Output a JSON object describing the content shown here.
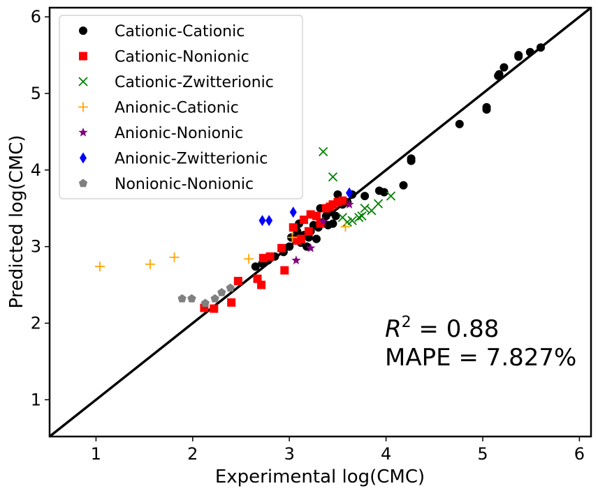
{
  "chart_data": {
    "type": "scatter",
    "title": "",
    "xlabel": "Experimental log(CMC)",
    "ylabel": "Predicted log(CMC)",
    "xlim": [
      0.52,
      6.12
    ],
    "ylim": [
      0.52,
      6.12
    ],
    "xticks": [
      1,
      2,
      3,
      4,
      5,
      6
    ],
    "yticks": [
      1,
      2,
      3,
      4,
      5,
      6
    ],
    "grid": false,
    "legend_position": "top-left",
    "reference_line": {
      "from": [
        0.52,
        0.52
      ],
      "to": [
        6.12,
        6.12
      ],
      "color": "#000000"
    },
    "annotations": {
      "r2_symbol": "R",
      "r2_superscript": "2",
      "r2_text": " = 0.88",
      "mape_text": "MAPE = 7.827%"
    },
    "series": [
      {
        "name": "Cationic-Cationic",
        "marker": "circle",
        "color": "#000000",
        "points": [
          [
            2.65,
            2.74
          ],
          [
            2.72,
            2.78
          ],
          [
            2.78,
            2.82
          ],
          [
            2.85,
            2.87
          ],
          [
            2.94,
            2.93
          ],
          [
            3.0,
            3.0
          ],
          [
            3.02,
            3.12
          ],
          [
            3.05,
            3.1
          ],
          [
            3.08,
            3.2
          ],
          [
            3.1,
            3.3
          ],
          [
            3.12,
            3.05
          ],
          [
            3.15,
            3.15
          ],
          [
            3.18,
            3.0
          ],
          [
            3.2,
            3.12
          ],
          [
            3.22,
            3.2
          ],
          [
            3.25,
            3.28
          ],
          [
            3.28,
            3.1
          ],
          [
            3.3,
            3.25
          ],
          [
            3.32,
            3.5
          ],
          [
            3.35,
            3.32
          ],
          [
            3.38,
            3.4
          ],
          [
            3.4,
            3.28
          ],
          [
            3.42,
            3.45
          ],
          [
            3.45,
            3.3
          ],
          [
            3.48,
            3.4
          ],
          [
            3.5,
            3.68
          ],
          [
            3.55,
            3.55
          ],
          [
            3.6,
            3.58
          ],
          [
            3.65,
            3.68
          ],
          [
            3.78,
            3.66
          ],
          [
            3.93,
            3.73
          ],
          [
            3.98,
            3.71
          ],
          [
            4.18,
            3.8
          ],
          [
            4.26,
            4.12
          ],
          [
            4.26,
            4.15
          ],
          [
            4.76,
            4.6
          ],
          [
            5.04,
            4.79
          ],
          [
            5.04,
            4.82
          ],
          [
            5.16,
            5.23
          ],
          [
            5.17,
            5.25
          ],
          [
            5.22,
            5.34
          ],
          [
            5.37,
            5.48
          ],
          [
            5.37,
            5.5
          ],
          [
            5.49,
            5.54
          ],
          [
            5.6,
            5.6
          ]
        ]
      },
      {
        "name": "Cationic-Nonionic",
        "marker": "square",
        "color": "#ff0000",
        "points": [
          [
            2.12,
            2.2
          ],
          [
            2.22,
            2.19
          ],
          [
            2.4,
            2.27
          ],
          [
            2.47,
            2.55
          ],
          [
            2.67,
            2.58
          ],
          [
            2.71,
            2.5
          ],
          [
            2.73,
            2.85
          ],
          [
            2.8,
            2.87
          ],
          [
            2.92,
            2.98
          ],
          [
            2.95,
            2.69
          ],
          [
            3.04,
            3.25
          ],
          [
            3.08,
            3.08
          ],
          [
            3.12,
            3.1
          ],
          [
            3.15,
            3.35
          ],
          [
            3.2,
            3.2
          ],
          [
            3.22,
            3.42
          ],
          [
            3.28,
            3.4
          ],
          [
            3.32,
            3.3
          ],
          [
            3.38,
            3.5
          ],
          [
            3.42,
            3.52
          ],
          [
            3.45,
            3.55
          ],
          [
            3.5,
            3.58
          ],
          [
            3.55,
            3.6
          ]
        ]
      },
      {
        "name": "Cationic-Zwitterionic",
        "marker": "x",
        "color": "#008000",
        "points": [
          [
            3.35,
            4.24
          ],
          [
            3.45,
            3.91
          ],
          [
            3.55,
            3.38
          ],
          [
            3.6,
            3.32
          ],
          [
            3.65,
            3.34
          ],
          [
            3.72,
            3.38
          ],
          [
            3.75,
            3.4
          ],
          [
            3.78,
            3.5
          ],
          [
            3.85,
            3.47
          ],
          [
            3.92,
            3.56
          ],
          [
            4.05,
            3.66
          ]
        ]
      },
      {
        "name": "Anionic-Cationic",
        "marker": "plus",
        "color": "#ffa500",
        "points": [
          [
            1.04,
            2.74
          ],
          [
            1.56,
            2.77
          ],
          [
            1.81,
            2.86
          ],
          [
            2.58,
            2.84
          ],
          [
            3.03,
            3.12
          ],
          [
            3.58,
            3.26
          ]
        ]
      },
      {
        "name": "Anionic-Nonionic",
        "marker": "star",
        "color": "#800080",
        "points": [
          [
            3.07,
            2.82
          ],
          [
            3.22,
            2.98
          ],
          [
            3.35,
            3.33
          ],
          [
            3.62,
            3.55
          ]
        ]
      },
      {
        "name": "Anionic-Zwitterionic",
        "marker": "diamond",
        "color": "#0000ff",
        "points": [
          [
            2.72,
            3.34
          ],
          [
            2.79,
            3.34
          ],
          [
            3.04,
            3.45
          ],
          [
            3.62,
            3.7
          ]
        ]
      },
      {
        "name": "Nonionic-Nonionic",
        "marker": "pentagon",
        "color": "#808080",
        "points": [
          [
            1.89,
            2.32
          ],
          [
            1.99,
            2.32
          ],
          [
            2.13,
            2.26
          ],
          [
            2.23,
            2.32
          ],
          [
            2.3,
            2.4
          ],
          [
            2.39,
            2.46
          ]
        ]
      }
    ]
  }
}
